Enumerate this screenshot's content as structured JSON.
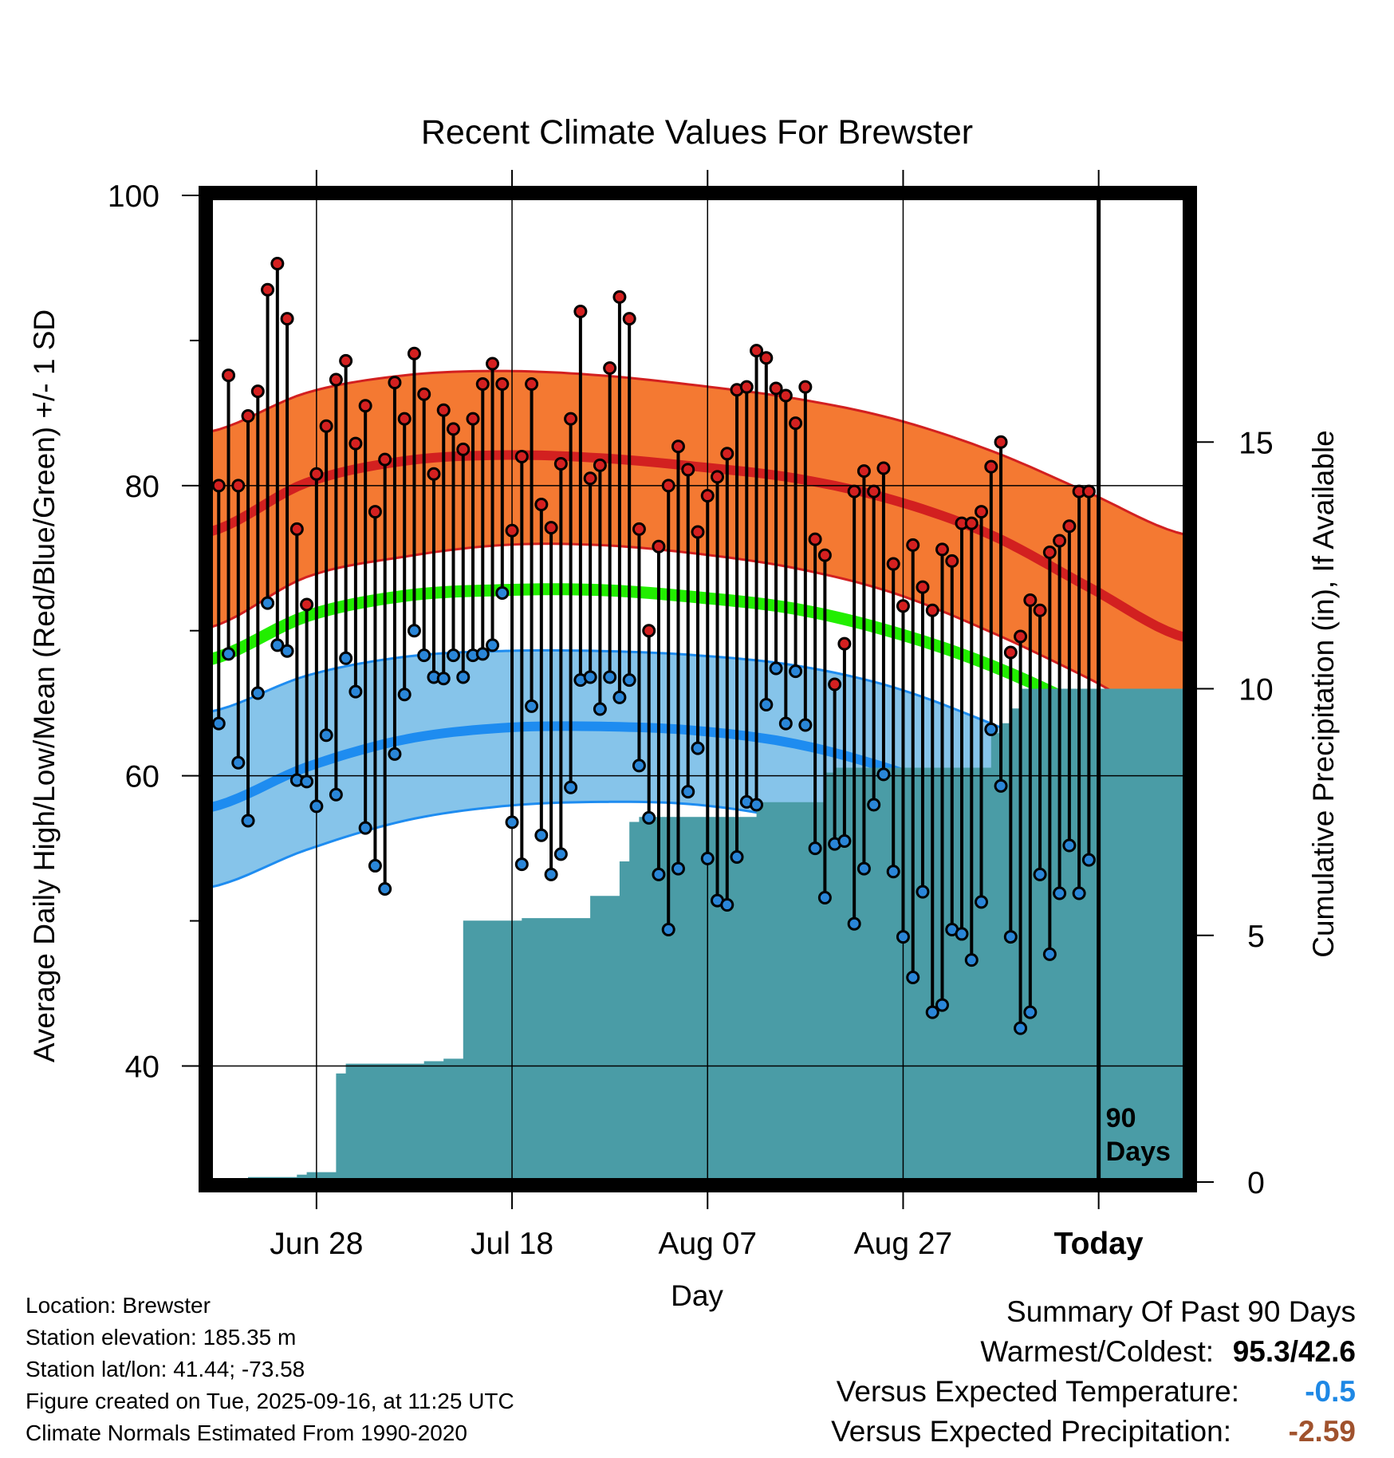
{
  "chart_data": {
    "type": "line",
    "title": "Recent Climate Values For Brewster",
    "xlabel": "Day",
    "ylabel": "Average Daily High/Low/Mean (Red/Blue/Green) +/- 1 SD",
    "y2label": "Cumulative Precipitation (in), If Available",
    "ylim": [
      32,
      100
    ],
    "y_ticks": [
      40,
      60,
      80,
      100
    ],
    "y2lim": [
      0,
      20
    ],
    "y2_ticks": [
      0,
      5,
      10,
      15
    ],
    "x_ticks": [
      {
        "day": 11,
        "label": "Jun 28"
      },
      {
        "day": 31,
        "label": "Jul 18"
      },
      {
        "day": 51,
        "label": "Aug 07"
      },
      {
        "day": 71,
        "label": "Aug 27"
      },
      {
        "day": 91,
        "label": "Today"
      }
    ],
    "today_label": "90\nDays",
    "colors": {
      "high_band": "#f47932",
      "high_line": "#d22020",
      "mean_line": "#22ee00",
      "low_band": "#86c4ea",
      "low_line": "#1e8cf0",
      "precip": "#4a9ca6",
      "high_dot": "#d42020",
      "low_dot": "#2a86d8"
    },
    "normals": {
      "days": [
        0,
        10,
        20,
        30,
        40,
        50,
        60,
        70,
        80,
        90,
        100
      ],
      "high_mean": [
        76.8,
        80.2,
        81.7,
        82.1,
        81.9,
        81.3,
        80.5,
        79.0,
        76.6,
        73.0,
        69.5
      ],
      "high_sd_upper": [
        83.7,
        86.4,
        87.6,
        87.9,
        87.6,
        86.9,
        86.0,
        84.6,
        82.4,
        79.5,
        76.6
      ],
      "high_sd_lower": [
        70.2,
        73.7,
        75.1,
        75.9,
        75.9,
        75.3,
        74.3,
        72.6,
        69.9,
        66.7,
        63.2
      ],
      "mean": [
        68.0,
        71.0,
        72.4,
        72.8,
        72.8,
        72.3,
        71.5,
        69.9,
        67.6,
        64.5,
        60.6
      ],
      "low_mean": [
        57.8,
        60.6,
        62.5,
        63.3,
        63.4,
        63.1,
        62.2,
        60.4,
        57.9,
        54.9,
        51.4
      ],
      "low_sd_upper": [
        64.4,
        66.9,
        68.2,
        68.6,
        68.6,
        68.3,
        67.6,
        66.1,
        63.6,
        60.7,
        59.0
      ],
      "low_sd_lower": [
        52.3,
        54.9,
        56.9,
        57.9,
        58.2,
        58.0,
        56.9,
        54.6,
        51.0,
        46.0,
        40.0
      ]
    },
    "series": [
      {
        "name": "High",
        "values": [
          80.0,
          87.6,
          80.0,
          84.8,
          86.5,
          93.5,
          95.3,
          91.5,
          77.0,
          71.8,
          80.8,
          84.1,
          87.3,
          88.6,
          82.9,
          85.5,
          78.2,
          81.8,
          87.1,
          84.6,
          89.1,
          86.3,
          80.8,
          85.2,
          83.9,
          82.5,
          84.6,
          87.0,
          88.4,
          87.0,
          76.9,
          82.0,
          87.0,
          78.7,
          77.1,
          81.5,
          84.6,
          92.0,
          80.5,
          81.4,
          88.1,
          93.0,
          91.5,
          77.0,
          70.0,
          75.8,
          80.0,
          82.7,
          81.1,
          76.8,
          79.3,
          80.6,
          82.2,
          86.6,
          86.8,
          89.3,
          88.8,
          86.7,
          86.2,
          84.3,
          86.8,
          76.3,
          75.2,
          66.3,
          69.1,
          79.6,
          81.0,
          79.6,
          81.2,
          74.6,
          71.7,
          75.9,
          73.0,
          71.4,
          75.6,
          74.8,
          77.4,
          77.4,
          78.2,
          81.3,
          83.0,
          68.5,
          69.6,
          72.1,
          71.4,
          75.4,
          76.2,
          77.2,
          79.6,
          79.6
        ]
      },
      {
        "name": "Low",
        "values": [
          63.6,
          68.4,
          60.9,
          56.9,
          65.7,
          71.9,
          69.0,
          68.6,
          59.7,
          59.6,
          57.9,
          62.8,
          58.7,
          68.1,
          65.8,
          56.4,
          53.8,
          52.2,
          61.5,
          65.6,
          70.0,
          68.3,
          66.8,
          66.7,
          68.3,
          66.8,
          68.3,
          68.4,
          69.0,
          72.6,
          56.8,
          53.9,
          64.8,
          55.9,
          53.2,
          54.6,
          59.2,
          66.6,
          66.8,
          64.6,
          66.8,
          65.4,
          66.6,
          60.7,
          57.1,
          53.2,
          49.4,
          53.6,
          58.9,
          61.9,
          54.3,
          51.4,
          51.1,
          54.4,
          58.2,
          58.0,
          64.9,
          67.4,
          63.6,
          67.2,
          63.5,
          55.0,
          51.6,
          55.3,
          55.5,
          49.8,
          53.6,
          58.0,
          60.1,
          53.4,
          48.9,
          46.1,
          52.0,
          43.7,
          44.2,
          49.4,
          49.1,
          47.3,
          51.3,
          63.2,
          59.3,
          48.9,
          42.6,
          43.7,
          53.2,
          47.7,
          51.9,
          55.2,
          51.9,
          54.2
        ]
      },
      {
        "name": "Cumulative Precipitation",
        "values": [
          0.0,
          0.0,
          0.0,
          0.0,
          0.1,
          0.1,
          0.1,
          0.1,
          0.1,
          0.15,
          0.2,
          0.2,
          0.2,
          2.2,
          2.4,
          2.4,
          2.4,
          2.4,
          2.4,
          2.4,
          2.4,
          2.4,
          2.45,
          2.45,
          2.5,
          2.5,
          5.3,
          5.3,
          5.3,
          5.3,
          5.3,
          5.3,
          5.35,
          5.35,
          5.35,
          5.35,
          5.35,
          5.35,
          5.35,
          5.8,
          5.8,
          5.8,
          6.5,
          7.3,
          7.4,
          7.4,
          7.4,
          7.4,
          7.4,
          7.4,
          7.4,
          7.4,
          7.4,
          7.4,
          7.4,
          7.4,
          7.7,
          7.7,
          7.7,
          7.7,
          7.7,
          7.7,
          7.7,
          8.3,
          8.4,
          8.4,
          8.4,
          8.4,
          8.4,
          8.4,
          8.4,
          8.4,
          8.4,
          8.4,
          8.4,
          8.4,
          8.4,
          8.4,
          8.4,
          8.4,
          9.1,
          9.3,
          9.6,
          10.0,
          10.0,
          10.0,
          10.0,
          10.0,
          10.0,
          10.0
        ]
      }
    ]
  },
  "footer": {
    "location": "Location: Brewster",
    "elevation": "Station elevation: 185.35 m",
    "latlon": "Station lat/lon: 41.44; -73.58",
    "created": "Figure created on Tue, 2025-09-16, at 11:25 UTC",
    "normals": "Climate Normals Estimated From 1990-2020"
  },
  "summary": {
    "title": "Summary Of Past 90 Days",
    "warmest_label": "Warmest/Coldest:",
    "warmest_value": "95.3/42.6",
    "temp_label": "Versus Expected Temperature:",
    "temp_value": "-0.5",
    "temp_color": "#1e88e5",
    "precip_label": "Versus Expected Precipitation:",
    "precip_value": "-2.59",
    "precip_color": "#a0522d"
  }
}
